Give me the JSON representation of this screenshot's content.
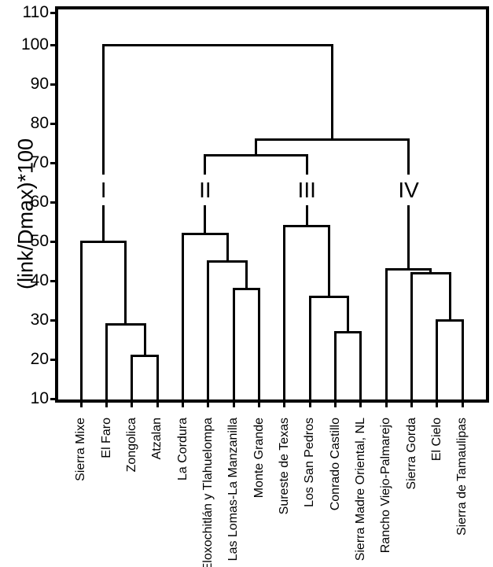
{
  "chart_data": {
    "type": "dendrogram",
    "title": "",
    "ylabel": "(link/Dmax)*100",
    "xlabel": "",
    "ylim": [
      10,
      110
    ],
    "yticks": [
      10,
      20,
      30,
      40,
      50,
      60,
      70,
      80,
      90,
      100,
      110
    ],
    "grid": false,
    "legend": null,
    "line_color": "#000000",
    "background": "#ffffff",
    "categories": [
      "Sierra Mixe",
      "El Faro",
      "Zongolica",
      "Atzalan",
      "La Cordura",
      "Eloxochitlán y Tlahuelompa",
      "Las Lomas-La Manzanilla",
      "Monte Grande",
      "Sureste de Texas",
      "Los San Pedros",
      "Conrado Castillo",
      "Sierra Madre Oriental, NL",
      "Rancho Viejo-Palmarejo",
      "Sierra Gorda",
      "El Cielo",
      "Sierra de Tamaulipas"
    ],
    "cluster_labels": [
      "I",
      "II",
      "III",
      "IV"
    ],
    "tree": {
      "h": 100,
      "children": [
        {
          "h": 50,
          "label": "I",
          "children": [
            {
              "leaf": 0
            },
            {
              "h": 29,
              "children": [
                {
                  "leaf": 1
                },
                {
                  "h": 21,
                  "children": [
                    {
                      "leaf": 2
                    },
                    {
                      "leaf": 3
                    }
                  ]
                }
              ]
            }
          ]
        },
        {
          "h": 76,
          "children": [
            {
              "h": 72,
              "children": [
                {
                  "h": 52,
                  "label": "II",
                  "children": [
                    {
                      "leaf": 4
                    },
                    {
                      "h": 45,
                      "children": [
                        {
                          "leaf": 5
                        },
                        {
                          "h": 38,
                          "children": [
                            {
                              "leaf": 6
                            },
                            {
                              "leaf": 7
                            }
                          ]
                        }
                      ]
                    }
                  ]
                },
                {
                  "h": 54,
                  "label": "III",
                  "children": [
                    {
                      "leaf": 8
                    },
                    {
                      "h": 36,
                      "children": [
                        {
                          "leaf": 9
                        },
                        {
                          "h": 27,
                          "children": [
                            {
                              "leaf": 10
                            },
                            {
                              "leaf": 11
                            }
                          ]
                        }
                      ]
                    }
                  ]
                }
              ]
            },
            {
              "h": 43,
              "label": "IV",
              "children": [
                {
                  "leaf": 12
                },
                {
                  "h": 42,
                  "children": [
                    {
                      "leaf": 13
                    },
                    {
                      "h": 30,
                      "children": [
                        {
                          "leaf": 14
                        },
                        {
                          "leaf": 15
                        }
                      ]
                    }
                  ]
                }
              ]
            }
          ]
        }
      ]
    }
  }
}
